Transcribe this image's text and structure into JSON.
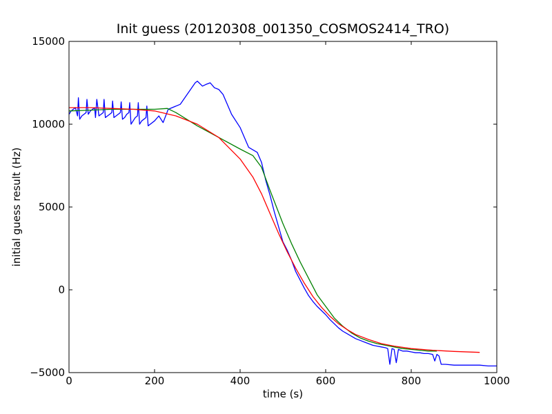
{
  "chart_data": {
    "type": "line",
    "title": "Init guess (20120308_001350_COSMOS2414_TRO)",
    "xlabel": "time (s)",
    "ylabel": "initial guess result (Hz)",
    "xlim": [
      0,
      1000
    ],
    "ylim": [
      -5000,
      15000
    ],
    "xticks": [
      0,
      200,
      400,
      600,
      800,
      1000
    ],
    "yticks": [
      -5000,
      0,
      5000,
      10000,
      15000
    ],
    "xtick_labels": [
      "0",
      "200",
      "400",
      "600",
      "800",
      "1000"
    ],
    "ytick_labels": [
      "−5000",
      "0",
      "5000",
      "10000",
      "15000"
    ],
    "grid": false,
    "legend": "none",
    "series": [
      {
        "color": "#0000ff",
        "x": [
          0,
          5,
          10,
          15,
          20,
          22,
          25,
          30,
          35,
          40,
          42,
          45,
          50,
          55,
          60,
          62,
          65,
          70,
          75,
          80,
          82,
          85,
          90,
          95,
          100,
          102,
          105,
          110,
          115,
          120,
          122,
          125,
          130,
          135,
          140,
          142,
          145,
          150,
          155,
          160,
          162,
          165,
          170,
          175,
          180,
          182,
          185,
          200,
          210,
          220,
          232,
          260,
          295,
          300,
          312,
          320,
          330,
          340,
          350,
          360,
          380,
          400,
          420,
          440,
          450,
          460,
          470,
          480,
          490,
          500,
          510,
          520,
          530,
          540,
          550,
          560,
          570,
          580,
          590,
          600,
          610,
          620,
          630,
          640,
          650,
          660,
          670,
          680,
          690,
          700,
          710,
          720,
          730,
          740,
          745,
          750,
          755,
          760,
          765,
          770,
          775,
          780,
          790,
          800,
          810,
          820,
          830,
          840,
          850,
          855,
          860,
          865,
          870,
          880,
          900,
          920,
          940,
          960,
          980,
          1000
        ],
        "y": [
          10600,
          10800,
          10900,
          11000,
          10500,
          11600,
          10300,
          10500,
          10600,
          10700,
          11500,
          10600,
          10800,
          10900,
          11000,
          10400,
          11500,
          10500,
          10600,
          10700,
          11500,
          10400,
          10500,
          10600,
          10700,
          11400,
          10400,
          10500,
          10600,
          10700,
          11350,
          10300,
          10400,
          10600,
          10700,
          11300,
          10000,
          10200,
          10400,
          10500,
          11300,
          10000,
          10200,
          10300,
          10400,
          11100,
          9900,
          10200,
          10500,
          10100,
          10900,
          11200,
          12500,
          12600,
          12300,
          12400,
          12500,
          12200,
          12100,
          11800,
          10600,
          9800,
          8600,
          8300,
          7700,
          6600,
          5700,
          4700,
          3800,
          2900,
          2400,
          1800,
          1100,
          600,
          100,
          -350,
          -700,
          -1000,
          -1250,
          -1500,
          -1800,
          -2050,
          -2300,
          -2500,
          -2650,
          -2800,
          -2950,
          -3050,
          -3150,
          -3250,
          -3350,
          -3400,
          -3450,
          -3500,
          -3550,
          -4500,
          -3550,
          -3600,
          -4400,
          -3600,
          -3650,
          -3700,
          -3700,
          -3750,
          -3800,
          -3800,
          -3850,
          -3850,
          -3900,
          -4300,
          -3900,
          -4000,
          -4500,
          -4500,
          -4550,
          -4550,
          -4550,
          -4550,
          -4600,
          -4600
        ]
      },
      {
        "color": "#008000",
        "x": [
          0,
          50,
          100,
          150,
          200,
          230,
          250,
          300,
          350,
          400,
          430,
          450,
          470,
          500,
          520,
          540,
          560,
          580,
          600,
          620,
          640,
          660,
          680,
          700,
          720,
          740,
          760,
          780,
          800,
          820,
          840,
          860
        ],
        "y": [
          10800,
          10850,
          10900,
          10900,
          10900,
          10950,
          10700,
          9900,
          9200,
          8500,
          8100,
          7400,
          6000,
          4000,
          2800,
          1700,
          700,
          -300,
          -1000,
          -1700,
          -2200,
          -2600,
          -2900,
          -3100,
          -3250,
          -3350,
          -3450,
          -3550,
          -3600,
          -3650,
          -3700,
          -3700
        ]
      },
      {
        "color": "#ff0000",
        "x": [
          0,
          50,
          100,
          150,
          200,
          250,
          300,
          350,
          400,
          430,
          450,
          470,
          490,
          510,
          530,
          550,
          570,
          590,
          610,
          630,
          650,
          670,
          700,
          730,
          760,
          800,
          850,
          900,
          960
        ],
        "y": [
          11000,
          11000,
          10950,
          10900,
          10800,
          10500,
          10000,
          9200,
          7900,
          6800,
          5800,
          4600,
          3400,
          2300,
          1300,
          400,
          -400,
          -1050,
          -1600,
          -2050,
          -2400,
          -2700,
          -3000,
          -3250,
          -3400,
          -3550,
          -3650,
          -3720,
          -3780
        ]
      }
    ]
  }
}
